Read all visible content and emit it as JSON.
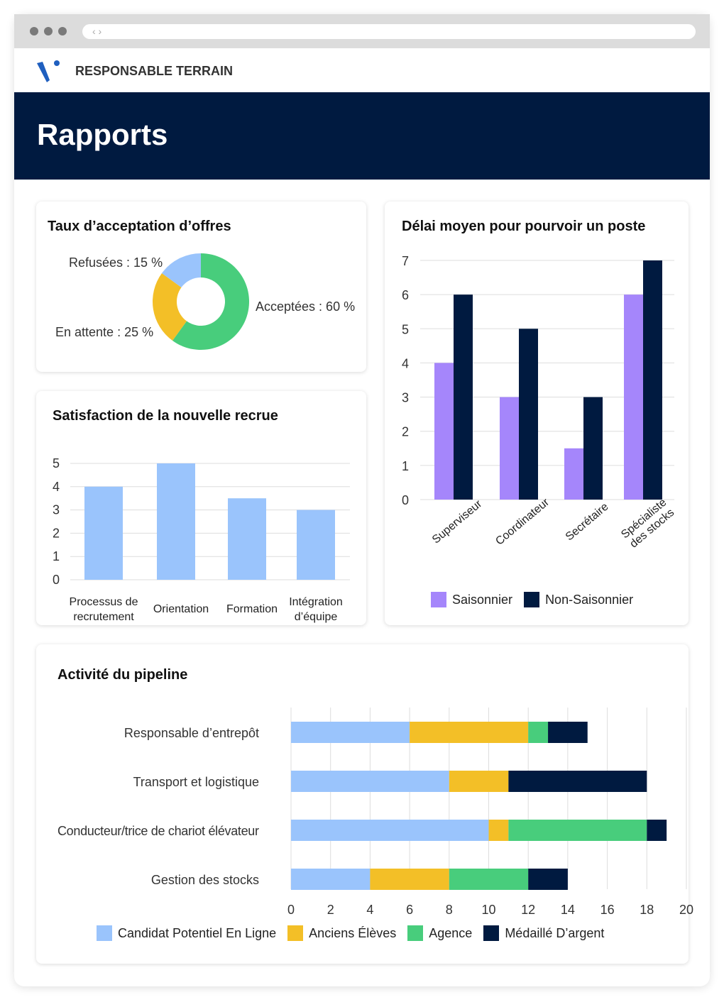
{
  "browser": {
    "nav_icon": "chevrons-left-right"
  },
  "header": {
    "brand": "RESPONSABLE TERRAIN",
    "title": "Rapports"
  },
  "colors": {
    "navy": "#001a40",
    "blue": "#9ac4fc",
    "yellow": "#f3bf27",
    "green": "#48cd7c",
    "purple": "#a586fb",
    "logo": "#1f5fbf"
  },
  "chart_data": [
    {
      "type": "pie",
      "title": "Taux d’acceptation d’offres",
      "donut": true,
      "slices": [
        {
          "label": "Acceptées : 60 %",
          "value": 60,
          "color": "#48cd7c"
        },
        {
          "label": "En attente : 25 %",
          "value": 25,
          "color": "#f3bf27"
        },
        {
          "label": "Refusées : 15 %",
          "value": 15,
          "color": "#9ac4fc"
        }
      ]
    },
    {
      "type": "bar",
      "title": "Satisfaction de la nouvelle recrue",
      "categories": [
        "Processus de recrutement",
        "Orientation",
        "Formation",
        "Intégration d’équipe"
      ],
      "values": [
        4,
        5,
        3.5,
        3
      ],
      "ylim": [
        0,
        5
      ],
      "yticks": [
        "0",
        "1",
        "2",
        "3",
        "4",
        "5"
      ],
      "grid": true,
      "color": "#9ac4fc"
    },
    {
      "type": "bar",
      "title": "Délai moyen pour pourvoir un poste",
      "categories": [
        "Superviseur",
        "Coordinateur",
        "Secrétaire",
        "Spécialiste des stocks"
      ],
      "series": [
        {
          "name": "Saisonnier",
          "values": [
            4,
            3,
            1.5,
            6
          ],
          "color": "#a586fb"
        },
        {
          "name": "Non-Saisonnier",
          "values": [
            6,
            5,
            3,
            7
          ],
          "color": "#001a40"
        }
      ],
      "ylim": [
        0,
        7
      ],
      "yticks": [
        "0",
        "1",
        "2",
        "3",
        "4",
        "5",
        "6",
        "7"
      ],
      "grid": true,
      "legend": "bottom"
    },
    {
      "type": "bar",
      "orientation": "horizontal",
      "stacked": true,
      "title": "Activité du pipeline",
      "categories": [
        "Responsable d’entrepôt",
        "Transport et logistique",
        "Conducteur/trice de chariot élévateur",
        "Gestion des stocks"
      ],
      "series": [
        {
          "name": "Candidat Potentiel En Ligne",
          "values": [
            6,
            8,
            10,
            4
          ],
          "color": "#9ac4fc"
        },
        {
          "name": "Anciens Élèves",
          "values": [
            6,
            3,
            1,
            4
          ],
          "color": "#f3bf27"
        },
        {
          "name": "Agence",
          "values": [
            1,
            0,
            7,
            4
          ],
          "color": "#48cd7c"
        },
        {
          "name": "Médaillé D’argent",
          "values": [
            2,
            7,
            1,
            2
          ],
          "color": "#001a40"
        }
      ],
      "xlim": [
        0,
        20
      ],
      "xticks": [
        "0",
        "2",
        "4",
        "6",
        "8",
        "10",
        "12",
        "14",
        "16",
        "18",
        "20"
      ],
      "grid": true,
      "legend": "bottom"
    }
  ]
}
